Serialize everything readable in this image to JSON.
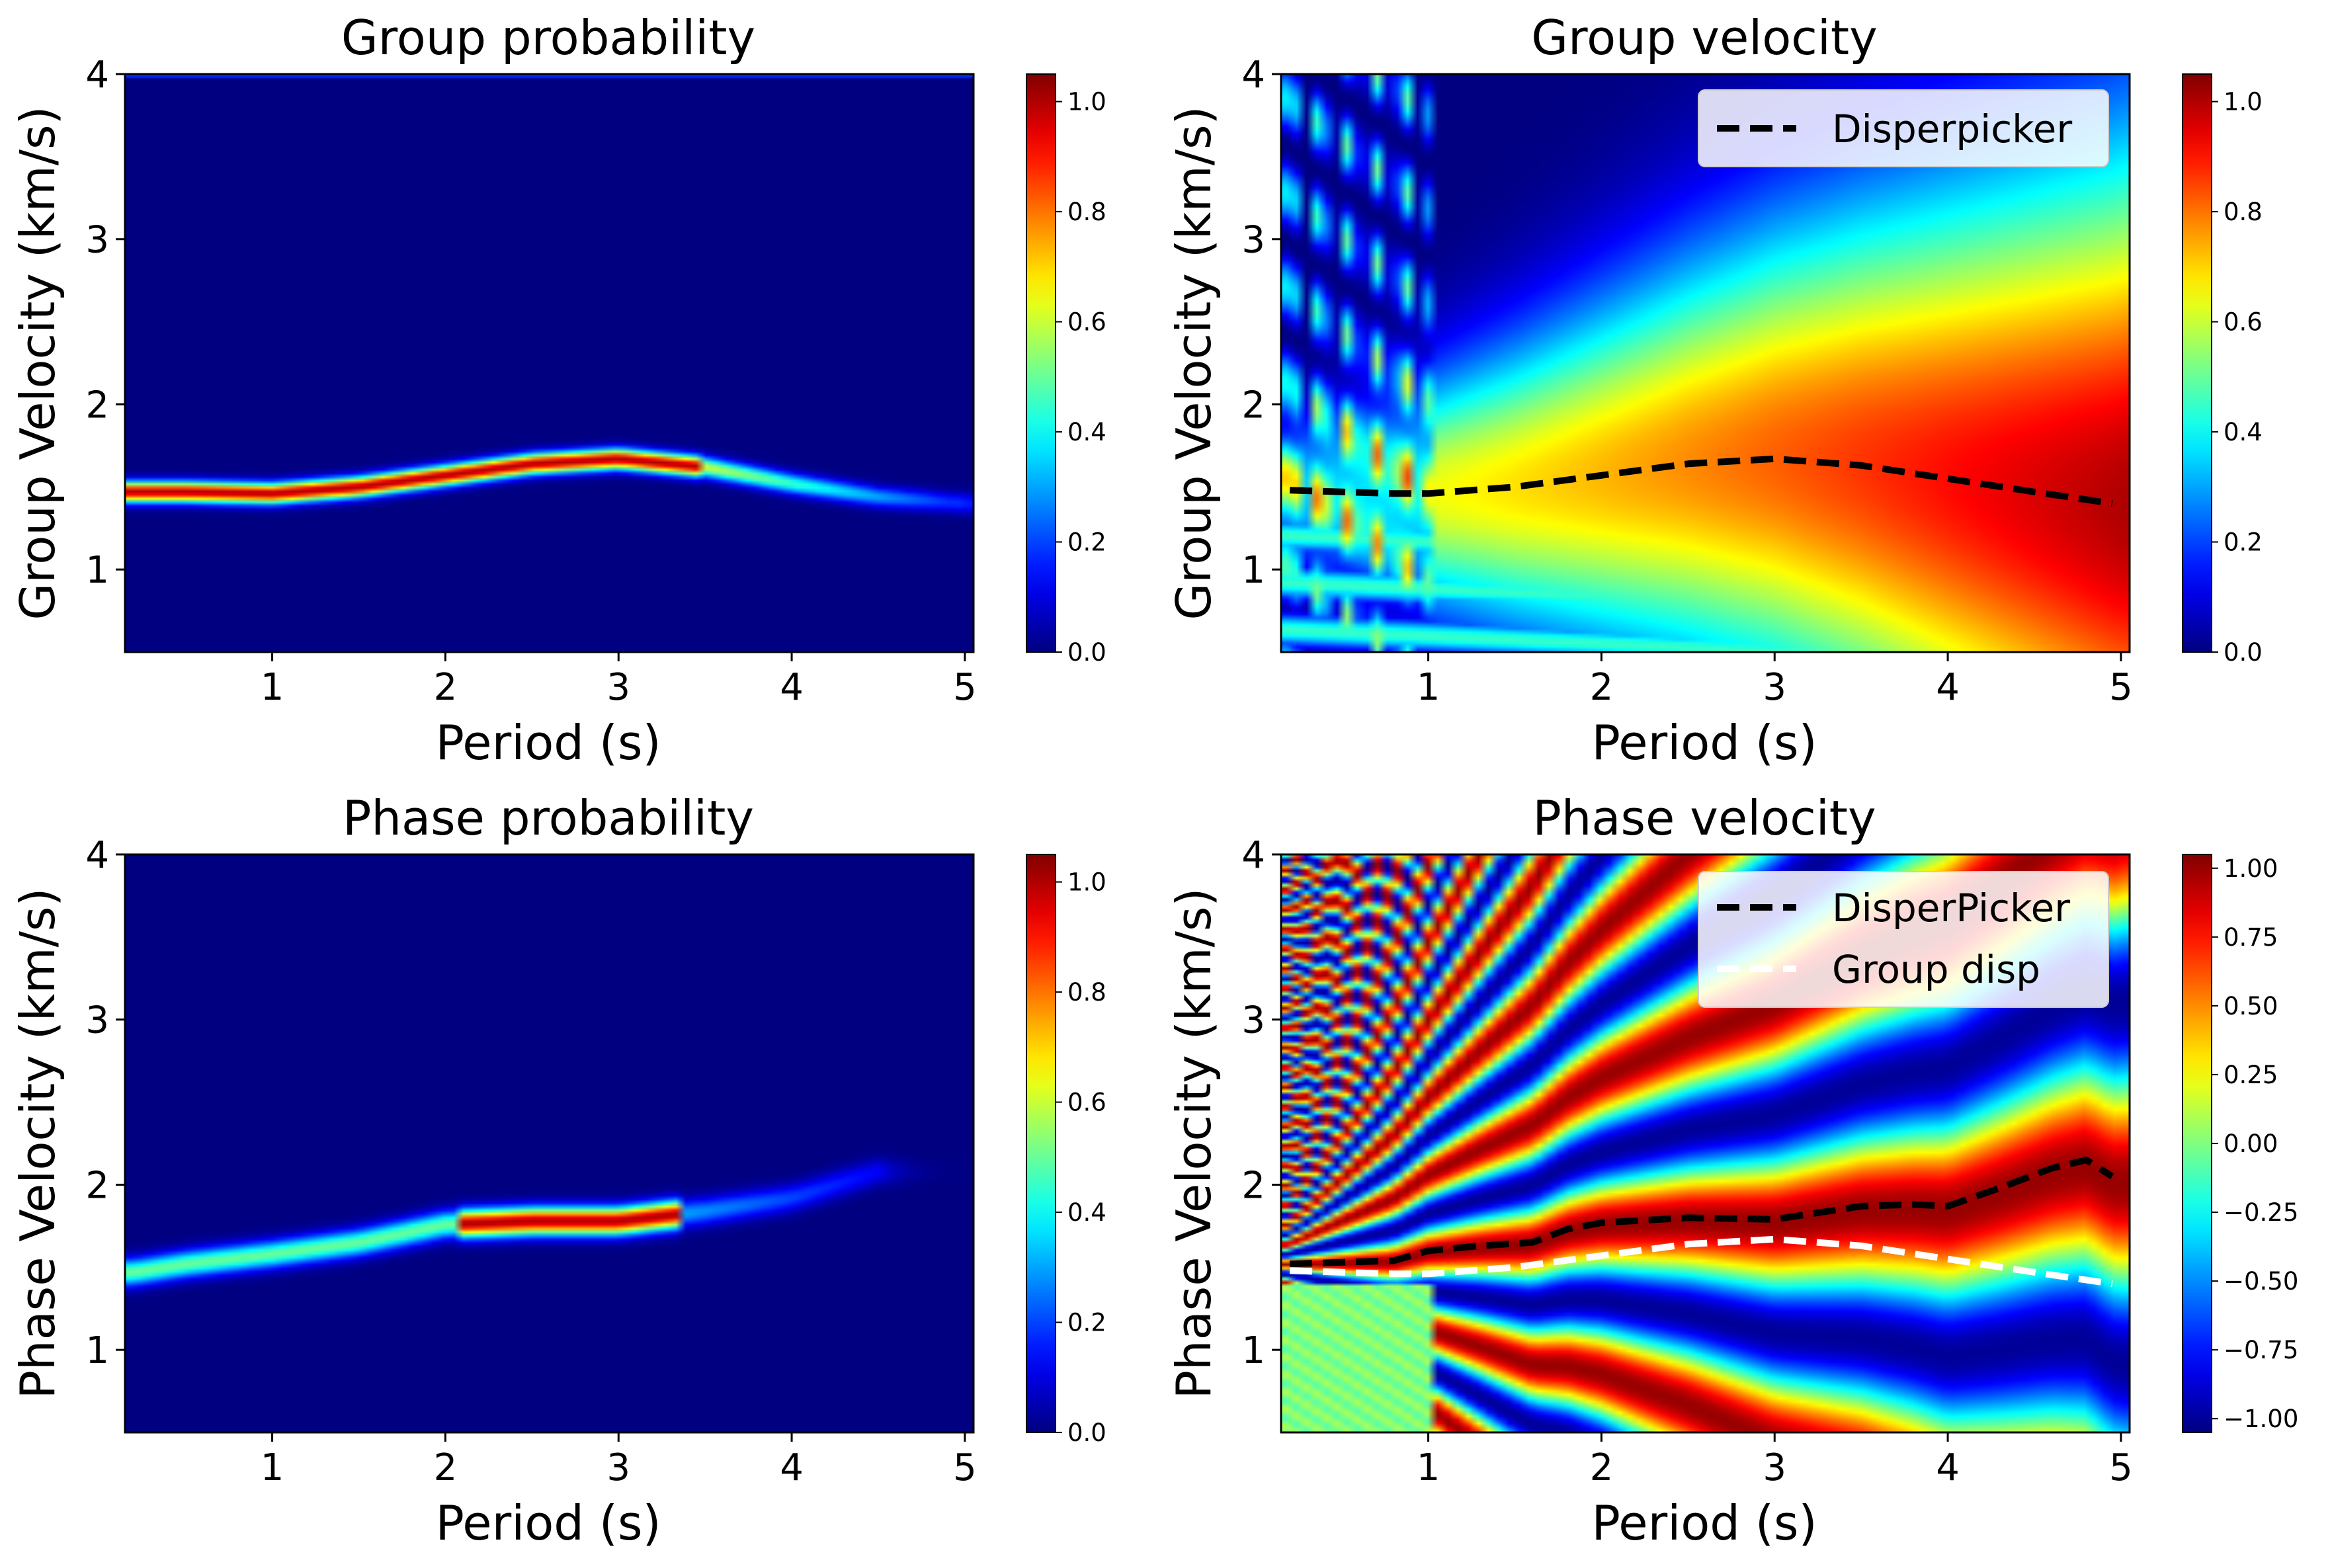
{
  "colors": {
    "jet": [
      "#00007f",
      "#0000ff",
      "#007fff",
      "#00ffff",
      "#7fff7f",
      "#ffff00",
      "#ff7f00",
      "#ff0000",
      "#7f0000"
    ],
    "pick_line": "#000000",
    "group_disp_line": "#ffffff",
    "legend_bg": "#ffffff"
  },
  "chart_data": [
    {
      "id": "group-probability",
      "type": "heatmap",
      "title": "Group probability",
      "xlabel": "Period (s)",
      "ylabel": "Group Velocity (km/s)",
      "xlim": [
        0.15,
        5.05
      ],
      "ylim": [
        0.5,
        4.0
      ],
      "xticks": [
        1,
        2,
        3,
        4,
        5
      ],
      "yticks": [
        1,
        2,
        3,
        4
      ],
      "colorbar": {
        "range": [
          0.0,
          1.05
        ],
        "ticks": [
          "0.0",
          "0.2",
          "0.4",
          "0.6",
          "0.8",
          "1.0"
        ],
        "tick_values": [
          0.0,
          0.2,
          0.4,
          0.6,
          0.8,
          1.0
        ]
      },
      "field": "ridge",
      "ridge": {
        "x": [
          0.2,
          0.5,
          1.0,
          1.5,
          2.0,
          2.5,
          3.0,
          3.5,
          4.0,
          4.5,
          5.0
        ],
        "y": [
          1.47,
          1.47,
          1.46,
          1.5,
          1.57,
          1.64,
          1.67,
          1.62,
          1.52,
          1.44,
          1.4
        ],
        "peak_amplitude": 1.0,
        "full_strength_until": 3.5,
        "width_kms": 0.06
      },
      "legend": []
    },
    {
      "id": "group-velocity",
      "type": "heatmap",
      "title": "Group velocity",
      "xlabel": "Period (s)",
      "ylabel": "Group Velocity (km/s)",
      "xlim": [
        0.15,
        5.05
      ],
      "ylim": [
        0.5,
        4.0
      ],
      "xticks": [
        1,
        2,
        3,
        4,
        5
      ],
      "yticks": [
        1,
        2,
        3,
        4
      ],
      "colorbar": {
        "range": [
          0.0,
          1.05
        ],
        "ticks": [
          "0.0",
          "0.2",
          "0.4",
          "0.6",
          "0.8",
          "1.0"
        ],
        "tick_values": [
          0.0,
          0.2,
          0.4,
          0.6,
          0.8,
          1.0
        ]
      },
      "field": "envelope",
      "series": [
        {
          "name": "Disperpicker",
          "style": "dashed-black",
          "x": [
            0.2,
            0.5,
            0.8,
            1.0,
            1.5,
            2.0,
            2.5,
            3.0,
            3.5,
            4.0,
            4.5,
            4.95
          ],
          "y": [
            1.48,
            1.47,
            1.46,
            1.46,
            1.5,
            1.57,
            1.64,
            1.67,
            1.63,
            1.55,
            1.47,
            1.4
          ]
        }
      ],
      "legend": [
        {
          "label": "Disperpicker",
          "style": "dashed-black"
        }
      ]
    },
    {
      "id": "phase-probability",
      "type": "heatmap",
      "title": "Phase probability",
      "xlabel": "Period (s)",
      "ylabel": "Phase Velocity (km/s)",
      "xlim": [
        0.15,
        5.05
      ],
      "ylim": [
        0.5,
        4.0
      ],
      "xticks": [
        1,
        2,
        3,
        4,
        5
      ],
      "yticks": [
        1,
        2,
        3,
        4
      ],
      "colorbar": {
        "range": [
          0.0,
          1.05
        ],
        "ticks": [
          "0.0",
          "0.2",
          "0.4",
          "0.6",
          "0.8",
          "1.0"
        ],
        "tick_values": [
          0.0,
          0.2,
          0.4,
          0.6,
          0.8,
          1.0
        ]
      },
      "field": "ridge",
      "ridge": {
        "x": [
          0.2,
          0.5,
          1.0,
          1.5,
          2.0,
          2.5,
          3.0,
          3.5,
          4.0,
          4.5
        ],
        "y": [
          1.47,
          1.52,
          1.58,
          1.65,
          1.76,
          1.78,
          1.78,
          1.84,
          1.92,
          2.08
        ],
        "peak_amplitude": 0.5,
        "full_strength_from": 2.1,
        "full_strength_until": 3.35,
        "width_kms": 0.08
      },
      "legend": []
    },
    {
      "id": "phase-velocity",
      "type": "heatmap",
      "title": "Phase velocity",
      "xlabel": "Period (s)",
      "ylabel": "Phase Velocity (km/s)",
      "xlim": [
        0.15,
        5.05
      ],
      "ylim": [
        0.5,
        4.0
      ],
      "xticks": [
        1,
        2,
        3,
        4,
        5
      ],
      "yticks": [
        1,
        2,
        3,
        4
      ],
      "colorbar": {
        "range": [
          -1.05,
          1.05
        ],
        "ticks": [
          "−1.00",
          "−0.75",
          "−0.50",
          "−0.25",
          "0.00",
          "0.25",
          "0.50",
          "0.75",
          "1.00"
        ],
        "tick_values": [
          -1.0,
          -0.75,
          -0.5,
          -0.25,
          0.0,
          0.25,
          0.5,
          0.75,
          1.0
        ]
      },
      "field": "oscillation",
      "series": [
        {
          "name": "DisperPicker",
          "style": "dashed-black",
          "x": [
            0.2,
            0.5,
            0.8,
            1.0,
            1.3,
            1.6,
            1.8,
            2.0,
            2.5,
            3.0,
            3.5,
            3.8,
            4.0,
            4.3,
            4.6,
            4.8,
            4.95
          ],
          "y": [
            1.52,
            1.53,
            1.54,
            1.6,
            1.63,
            1.65,
            1.73,
            1.77,
            1.8,
            1.79,
            1.87,
            1.88,
            1.87,
            1.98,
            2.1,
            2.15,
            2.05
          ]
        },
        {
          "name": "Group disp",
          "style": "dashed-white",
          "x": [
            0.2,
            0.5,
            0.8,
            1.0,
            1.5,
            2.0,
            2.5,
            3.0,
            3.5,
            4.0,
            4.5,
            4.95
          ],
          "y": [
            1.48,
            1.47,
            1.46,
            1.46,
            1.5,
            1.57,
            1.64,
            1.67,
            1.63,
            1.55,
            1.47,
            1.4
          ]
        }
      ],
      "legend": [
        {
          "label": "DisperPicker",
          "style": "dashed-black"
        },
        {
          "label": "Group disp",
          "style": "dashed-white"
        }
      ]
    }
  ]
}
